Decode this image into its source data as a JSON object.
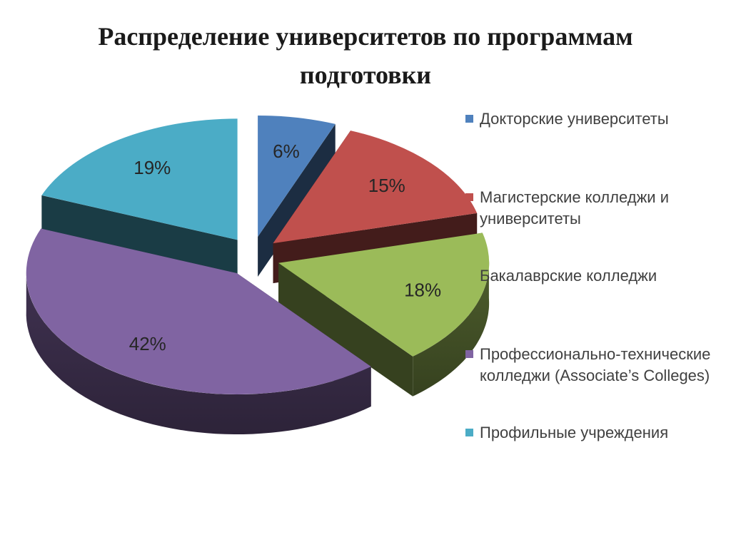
{
  "title": "Распределение университетов по программам подготовки",
  "chart_data": {
    "type": "pie",
    "title": "Распределение университетов по программам подготовки",
    "series": [
      {
        "name": "Докторские университеты",
        "value": 6,
        "label": "6%",
        "color": "#4f81bd"
      },
      {
        "name": "Магистерские колледжи и университеты",
        "value": 15,
        "label": "15%",
        "color": "#c0504d"
      },
      {
        "name": "Бакалаврские колледжи",
        "value": 18,
        "label": "18%",
        "color": "#9bbb59"
      },
      {
        "name": "Профессионально-технические колледжи (Associate’s Colleges)",
        "value": 42,
        "label": "42%",
        "color": "#8064a2"
      },
      {
        "name": "Профильные учреждения",
        "value": 19,
        "label": "19%",
        "color": "#4bacc6"
      }
    ],
    "legend_position": "right",
    "style": "3d-exploded"
  }
}
